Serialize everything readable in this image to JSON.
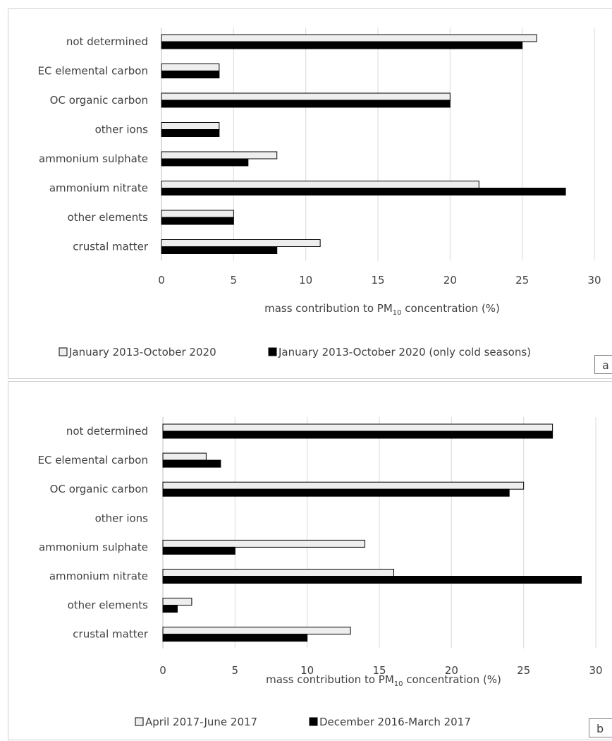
{
  "chart_data": [
    {
      "type": "bar",
      "orientation": "horizontal",
      "panel_label": "a",
      "categories": [
        "not determined",
        "EC elemental carbon",
        "OC organic carbon",
        "other ions",
        "ammonium sulphate",
        "ammonium nitrate",
        "other elements",
        "crustal matter"
      ],
      "series": [
        {
          "name": "January 2013-October 2020",
          "color": "#eeeeee",
          "values": [
            26,
            4,
            20,
            4,
            8,
            22,
            5,
            11
          ]
        },
        {
          "name": "January 2013-October 2020 (only cold seasons)",
          "color": "#000000",
          "values": [
            25,
            4,
            20,
            4,
            6,
            28,
            5,
            8
          ]
        }
      ],
      "xlabel_prefix": "mass contribution to PM",
      "xlabel_subscript": "10",
      "xlabel_suffix": " concentration (%)",
      "xticks": [
        "0",
        "5",
        "10",
        "15",
        "20",
        "25",
        "30"
      ],
      "xlim": [
        0,
        30
      ],
      "grid": true,
      "legend_position": "bottom"
    },
    {
      "type": "bar",
      "orientation": "horizontal",
      "panel_label": "b",
      "categories": [
        "not determined",
        "EC elemental carbon",
        "OC organic carbon",
        "other ions",
        "ammonium sulphate",
        "ammonium nitrate",
        "other elements",
        "crustal matter"
      ],
      "series": [
        {
          "name": "April 2017-June 2017",
          "color": "#eeeeee",
          "values": [
            27,
            3,
            25,
            0,
            14,
            16,
            2,
            13
          ]
        },
        {
          "name": "December 2016-March 2017",
          "color": "#000000",
          "values": [
            27,
            4,
            24,
            0,
            5,
            29,
            1,
            10
          ]
        }
      ],
      "xlabel_prefix": "mass contribution to PM",
      "xlabel_subscript": "10",
      "xlabel_suffix": " concentration (%)",
      "xticks": [
        "0",
        "5",
        "10",
        "15",
        "20",
        "25",
        "30"
      ],
      "xlim": [
        0,
        30
      ],
      "grid": true,
      "legend_position": "bottom"
    }
  ]
}
